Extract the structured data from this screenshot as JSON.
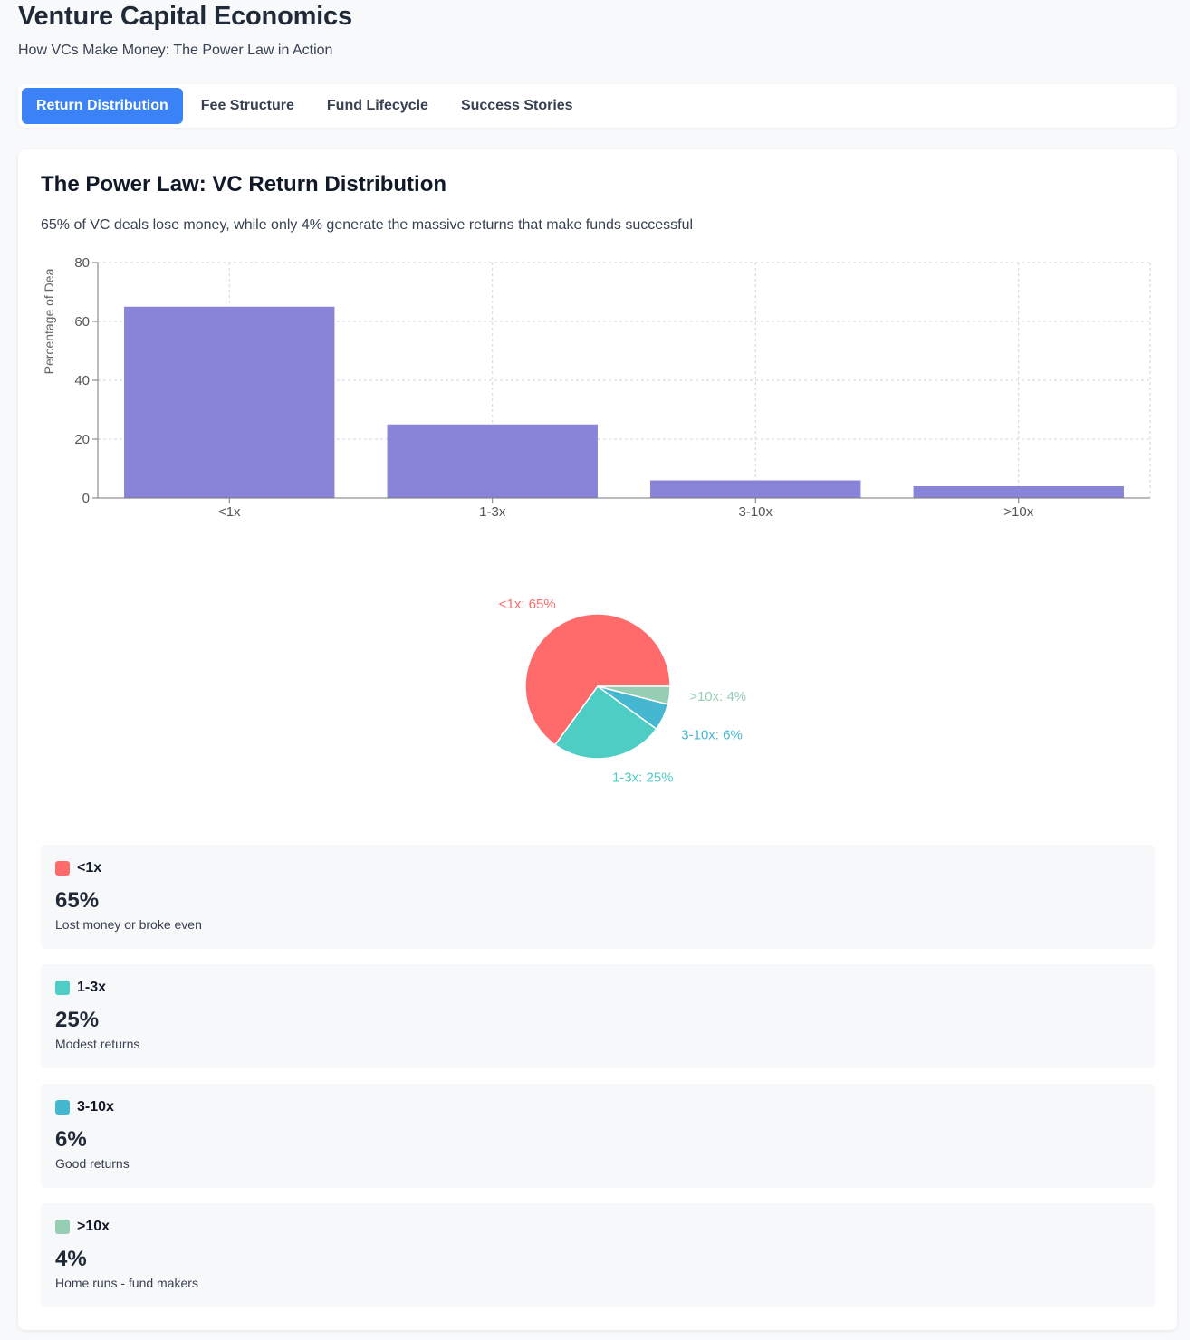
{
  "header": {
    "title": "Venture Capital Economics",
    "subtitle": "How VCs Make Money: The Power Law in Action"
  },
  "tabs": [
    {
      "label": "Return Distribution",
      "active": true
    },
    {
      "label": "Fee Structure",
      "active": false
    },
    {
      "label": "Fund Lifecycle",
      "active": false
    },
    {
      "label": "Success Stories",
      "active": false
    }
  ],
  "section": {
    "title": "The Power Law: VC Return Distribution",
    "description": "65% of VC deals lose money, while only 4% generate the massive returns that make funds successful"
  },
  "colors": {
    "accent": "#3b82f6",
    "bar": "#8884d8",
    "ranges": [
      "#ff6b6b",
      "#4ecdc4",
      "#45b7d1",
      "#96ceb4"
    ]
  },
  "chart_data": [
    {
      "type": "bar",
      "categories": [
        "<1x",
        "1-3x",
        "3-10x",
        ">10x"
      ],
      "values": [
        65,
        25,
        6,
        4
      ],
      "ylabel": "Percentage of Dea",
      "ylim": [
        0,
        80
      ],
      "yticks": [
        0,
        20,
        40,
        60,
        80
      ],
      "grid": true
    },
    {
      "type": "pie",
      "categories": [
        "<1x",
        "1-3x",
        "3-10x",
        ">10x"
      ],
      "values": [
        65,
        25,
        6,
        4
      ],
      "labels": [
        "<1x: 65%",
        "1-3x: 25%",
        "3-10x: 6%",
        ">10x: 4%"
      ]
    }
  ],
  "stats": [
    {
      "range": "<1x",
      "percent": "65%",
      "description": "Lost money or broke even"
    },
    {
      "range": "1-3x",
      "percent": "25%",
      "description": "Modest returns"
    },
    {
      "range": "3-10x",
      "percent": "6%",
      "description": "Good returns"
    },
    {
      "range": ">10x",
      "percent": "4%",
      "description": "Home runs - fund makers"
    }
  ]
}
